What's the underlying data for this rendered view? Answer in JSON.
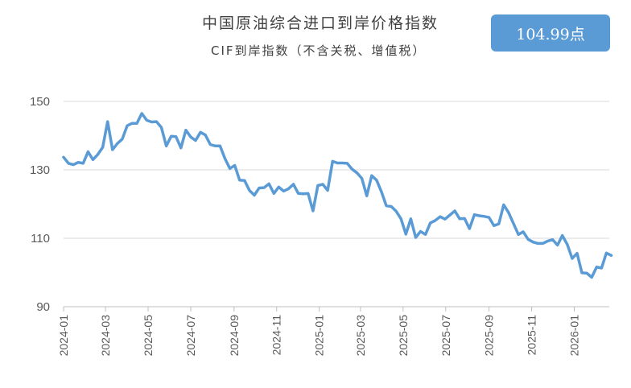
{
  "header": {
    "title": "中国原油综合进口到岸价格指数",
    "subtitle": "CIF到岸指数（不含关税、增值税）",
    "badge_value": "104.99点"
  },
  "colors": {
    "line": "#5b9bd5",
    "grid": "#d9d9d9",
    "axis": "#bfbfbf",
    "badge": "#5b9bd5"
  },
  "chart_data": {
    "type": "line",
    "title": "中国原油综合进口到岸价格指数",
    "subtitle": "CIF到岸指数（不含关税、增值税）",
    "xlabel": "",
    "ylabel": "",
    "ylim": [
      90,
      155
    ],
    "yticks": [
      90,
      110,
      130,
      150
    ],
    "xticks": [
      "2024-01",
      "2024-03",
      "2024-05",
      "2024-07",
      "2024-09",
      "2024-11",
      "2025-01",
      "2025-03",
      "2025-05",
      "2025-07",
      "2025-09",
      "2025-11",
      "2026-01"
    ],
    "grid": "horizontal",
    "series": [
      {
        "x": [
          "2024-01-01",
          "2024-01-08",
          "2024-01-15",
          "2024-01-22",
          "2024-01-29",
          "2024-02-05",
          "2024-02-12",
          "2024-02-19",
          "2024-02-26",
          "2024-03-04",
          "2024-03-11",
          "2024-03-18",
          "2024-03-25",
          "2024-04-01",
          "2024-04-08",
          "2024-04-15",
          "2024-04-22",
          "2024-04-29",
          "2024-05-06",
          "2024-05-13",
          "2024-05-20",
          "2024-05-27",
          "2024-06-03",
          "2024-06-10",
          "2024-06-17",
          "2024-06-24",
          "2024-07-01",
          "2024-07-08",
          "2024-07-15",
          "2024-07-22",
          "2024-07-29",
          "2024-08-05",
          "2024-08-12",
          "2024-08-19",
          "2024-08-26",
          "2024-09-02",
          "2024-09-09",
          "2024-09-16",
          "2024-09-23",
          "2024-09-30",
          "2024-10-07",
          "2024-10-14",
          "2024-10-21",
          "2024-10-28",
          "2024-11-04",
          "2024-11-11",
          "2024-11-18",
          "2024-11-25",
          "2024-12-02",
          "2024-12-09",
          "2024-12-16",
          "2024-12-23",
          "2024-12-30",
          "2025-01-06",
          "2025-01-13",
          "2025-01-20",
          "2025-01-27",
          "2025-02-03",
          "2025-02-10",
          "2025-02-17",
          "2025-02-24",
          "2025-03-03",
          "2025-03-10",
          "2025-03-17",
          "2025-03-24",
          "2025-03-31",
          "2025-04-07",
          "2025-04-14",
          "2025-04-21",
          "2025-04-28",
          "2025-05-05",
          "2025-05-12",
          "2025-05-19",
          "2025-05-26",
          "2025-06-02",
          "2025-06-09",
          "2025-06-16",
          "2025-06-23",
          "2025-06-30",
          "2025-07-07",
          "2025-07-14",
          "2025-07-21",
          "2025-07-28",
          "2025-08-04",
          "2025-08-11",
          "2025-08-18",
          "2025-08-25",
          "2025-09-01",
          "2025-09-08",
          "2025-09-15",
          "2025-09-22",
          "2025-09-29",
          "2025-10-06",
          "2025-10-13",
          "2025-10-20",
          "2025-10-27",
          "2025-11-03",
          "2025-11-10",
          "2025-11-17",
          "2025-11-24",
          "2025-12-01",
          "2025-12-08",
          "2025-12-15",
          "2025-12-22",
          "2025-12-29",
          "2026-01-05",
          "2026-01-12",
          "2026-01-19",
          "2026-01-26",
          "2026-02-02",
          "2026-02-09",
          "2026-02-16",
          "2026-02-23"
        ],
        "values": [
          133.7,
          131.9,
          131.5,
          132.2,
          131.9,
          135.3,
          133.0,
          134.5,
          136.6,
          144.1,
          135.9,
          137.7,
          139.0,
          142.9,
          143.6,
          143.6,
          146.5,
          144.5,
          144.0,
          144.1,
          142.4,
          137.0,
          139.8,
          139.7,
          136.4,
          141.6,
          139.6,
          138.6,
          141.0,
          140.2,
          137.4,
          137.0,
          137.0,
          133.3,
          130.4,
          131.3,
          127.0,
          126.9,
          124.0,
          122.6,
          124.7,
          124.8,
          125.9,
          123.1,
          125.0,
          123.8,
          124.5,
          125.8,
          123.1,
          123.0,
          123.1,
          118.0,
          125.4,
          125.8,
          124.0,
          132.5,
          132.0,
          132.0,
          131.9,
          130.2,
          129.1,
          127.5,
          122.4,
          128.3,
          127.0,
          123.6,
          119.5,
          119.3,
          117.9,
          115.7,
          111.2,
          115.7,
          110.2,
          112.0,
          111.1,
          114.5,
          115.2,
          116.3,
          115.6,
          116.8,
          118.0,
          115.7,
          115.8,
          112.8,
          116.9,
          116.6,
          116.4,
          116.1,
          113.7,
          114.2,
          119.8,
          117.5,
          114.3,
          111.1,
          111.9,
          109.7,
          108.9,
          108.5,
          108.5,
          109.2,
          109.6,
          108.0,
          110.8,
          108.2,
          104.1,
          105.6,
          99.9,
          99.8,
          98.6,
          101.6,
          101.3,
          105.7,
          105.0
        ]
      }
    ]
  }
}
